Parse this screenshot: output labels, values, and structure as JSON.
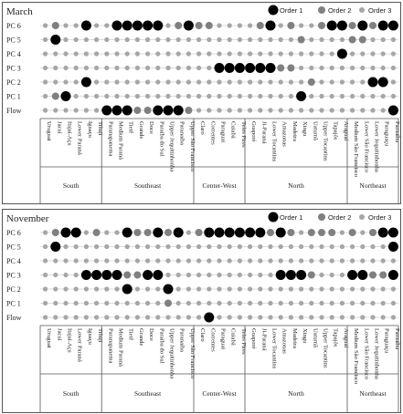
{
  "figure": {
    "legend": [
      {
        "label": "Order 1",
        "color": "#000000",
        "size": "large"
      },
      {
        "label": "Order 2",
        "color": "#808080",
        "size": "medium"
      },
      {
        "label": "Order 3",
        "color": "#a6a6a6",
        "size": "small"
      }
    ]
  },
  "chart_data": [
    {
      "type": "scatter",
      "title": "March",
      "rows": [
        "PC 6",
        "PC 5",
        "PC 4",
        "PC 3",
        "PC 2",
        "PC 1",
        "Flow"
      ],
      "columns": [
        "Uruguai",
        "Jacuí",
        "Itajaí-Açu",
        "Lower Paraná",
        "Iguaçu",
        "Tibají",
        "Paranapanema",
        "Medium Paraná",
        "Tietê",
        "Grande",
        "Doce",
        "Paraíba do Sul",
        "Upper Jequitinhonha",
        "Paranaíba",
        "Upper São Francisco",
        "Claro",
        "Correntes",
        "Paraguai",
        "Cuiabá",
        "Teles Pires",
        "Guaporé",
        "Ji-Paraná",
        "Lower Tocantins",
        "Amazonas",
        "Madeira",
        "Xingu",
        "Uatumã",
        "Upper Tocantins",
        "Tapajós",
        "Araguaí",
        "Medium São Francisco",
        "Lower São Francisco",
        "Lower Jequitinhonha",
        "Paraguaçu",
        "Parnaíba"
      ],
      "regions": [
        {
          "name": "South",
          "count": 6
        },
        {
          "name": "Southeast",
          "count": 9
        },
        {
          "name": "Center-West",
          "count": 5
        },
        {
          "name": "North",
          "count": 10
        },
        {
          "name": "Northeast",
          "count": 5
        }
      ],
      "values": {
        "PC 6": [
          3,
          2,
          3,
          3,
          1,
          3,
          3,
          1,
          1,
          1,
          1,
          1,
          3,
          2,
          1,
          2,
          2,
          3,
          3,
          3,
          3,
          2,
          1,
          3,
          2,
          3,
          3,
          2,
          1,
          1,
          2,
          1,
          2,
          1,
          1
        ],
        "PC 5": [
          3,
          1,
          3,
          3,
          3,
          3,
          3,
          3,
          3,
          3,
          3,
          3,
          3,
          3,
          3,
          3,
          3,
          3,
          3,
          3,
          3,
          3,
          3,
          3,
          3,
          2,
          3,
          3,
          3,
          3,
          2,
          2,
          3,
          3,
          3
        ],
        "PC 4": [
          3,
          3,
          3,
          3,
          3,
          3,
          3,
          3,
          3,
          3,
          3,
          3,
          3,
          3,
          3,
          3,
          3,
          3,
          3,
          3,
          3,
          3,
          3,
          3,
          3,
          3,
          3,
          3,
          3,
          1,
          3,
          3,
          3,
          3,
          3
        ],
        "PC 3": [
          3,
          3,
          3,
          3,
          3,
          3,
          3,
          3,
          3,
          3,
          3,
          3,
          3,
          3,
          3,
          3,
          3,
          1,
          1,
          1,
          1,
          1,
          1,
          2,
          2,
          3,
          3,
          3,
          3,
          3,
          3,
          3,
          3,
          3,
          3
        ],
        "PC 2": [
          3,
          3,
          3,
          3,
          1,
          3,
          3,
          3,
          3,
          3,
          3,
          3,
          3,
          3,
          3,
          3,
          3,
          3,
          3,
          3,
          3,
          3,
          3,
          3,
          3,
          3,
          2,
          3,
          3,
          3,
          3,
          3,
          1,
          1,
          3
        ],
        "PC 1": [
          3,
          2,
          1,
          3,
          3,
          3,
          3,
          3,
          3,
          3,
          3,
          3,
          3,
          3,
          3,
          3,
          3,
          3,
          3,
          3,
          3,
          3,
          3,
          3,
          3,
          1,
          3,
          3,
          3,
          3,
          3,
          3,
          3,
          3,
          3
        ],
        "Flow": [
          3,
          3,
          3,
          3,
          3,
          3,
          1,
          1,
          1,
          2,
          2,
          1,
          1,
          1,
          2,
          3,
          3,
          3,
          3,
          3,
          3,
          3,
          3,
          3,
          3,
          3,
          3,
          3,
          3,
          3,
          3,
          3,
          3,
          3,
          1
        ]
      },
      "value_legend": {
        "1": "Order 1",
        "2": "Order 2",
        "3": "Order 3"
      }
    },
    {
      "type": "scatter",
      "title": "November",
      "rows": [
        "PC 6",
        "PC 5",
        "PC 4",
        "PC 3",
        "PC 2",
        "PC 1",
        "Flow"
      ],
      "columns": [
        "Uruguai",
        "Jacuí",
        "Itajaí-Açu",
        "Lower Paraná",
        "Iguaçu",
        "Tibají",
        "Paranapanema",
        "Medium Paraná",
        "Tietê",
        "Grande",
        "Doce",
        "Paraíba do Sul",
        "Upper Jequitinhonha",
        "Paranaíba",
        "Upper São Francisco",
        "Claro",
        "Correntes",
        "Paraguai",
        "Cuiabá",
        "Teles Pires",
        "Guaporé",
        "Ji-Paraná",
        "Lower Tocantins",
        "Amazonas",
        "Madeira",
        "Xingu",
        "Uatumã",
        "Upper Tocantins",
        "Tapajós",
        "Araguaí",
        "Medium São Francisco",
        "Lower São Francisco",
        "Lower Jequitinhonha",
        "Paraguaçu",
        "Parnaíba"
      ],
      "regions": [
        {
          "name": "South",
          "count": 6
        },
        {
          "name": "Southeast",
          "count": 9
        },
        {
          "name": "Center-West",
          "count": 5
        },
        {
          "name": "North",
          "count": 10
        },
        {
          "name": "Northeast",
          "count": 5
        }
      ],
      "values": {
        "PC 6": [
          3,
          2,
          1,
          1,
          3,
          2,
          3,
          3,
          1,
          2,
          2,
          1,
          2,
          1,
          3,
          2,
          1,
          1,
          1,
          1,
          1,
          1,
          2,
          1,
          2,
          3,
          2,
          2,
          2,
          3,
          2,
          3,
          2,
          1,
          1
        ],
        "PC 5": [
          3,
          1,
          3,
          3,
          3,
          3,
          3,
          3,
          3,
          3,
          3,
          3,
          3,
          3,
          3,
          3,
          3,
          3,
          3,
          3,
          3,
          3,
          3,
          3,
          3,
          3,
          3,
          3,
          3,
          3,
          3,
          3,
          3,
          3,
          1
        ],
        "PC 4": [
          3,
          3,
          3,
          3,
          3,
          3,
          3,
          3,
          3,
          3,
          3,
          3,
          3,
          3,
          3,
          3,
          3,
          3,
          3,
          3,
          3,
          3,
          3,
          3,
          3,
          3,
          3,
          3,
          3,
          3,
          3,
          3,
          3,
          3,
          3
        ],
        "PC 3": [
          3,
          3,
          3,
          3,
          1,
          1,
          1,
          1,
          2,
          2,
          1,
          1,
          3,
          3,
          3,
          3,
          3,
          3,
          3,
          3,
          3,
          3,
          3,
          1,
          1,
          1,
          2,
          3,
          3,
          3,
          1,
          1,
          2,
          2,
          1
        ],
        "PC 2": [
          3,
          3,
          3,
          3,
          3,
          3,
          3,
          3,
          1,
          3,
          3,
          3,
          1,
          3,
          3,
          3,
          3,
          3,
          3,
          3,
          3,
          3,
          3,
          3,
          3,
          3,
          3,
          3,
          3,
          3,
          3,
          3,
          3,
          3,
          3
        ],
        "PC 1": [
          3,
          3,
          3,
          3,
          3,
          3,
          3,
          3,
          3,
          3,
          3,
          3,
          2,
          3,
          3,
          3,
          3,
          3,
          3,
          3,
          3,
          3,
          3,
          3,
          3,
          3,
          3,
          3,
          3,
          3,
          3,
          3,
          3,
          3,
          3
        ],
        "Flow": [
          3,
          3,
          3,
          3,
          3,
          3,
          3,
          3,
          3,
          3,
          3,
          3,
          3,
          3,
          3,
          3,
          1,
          3,
          3,
          3,
          3,
          3,
          3,
          3,
          3,
          3,
          3,
          3,
          3,
          3,
          3,
          3,
          3,
          3,
          3
        ]
      },
      "value_legend": {
        "1": "Order 1",
        "2": "Order 2",
        "3": "Order 3"
      }
    }
  ]
}
